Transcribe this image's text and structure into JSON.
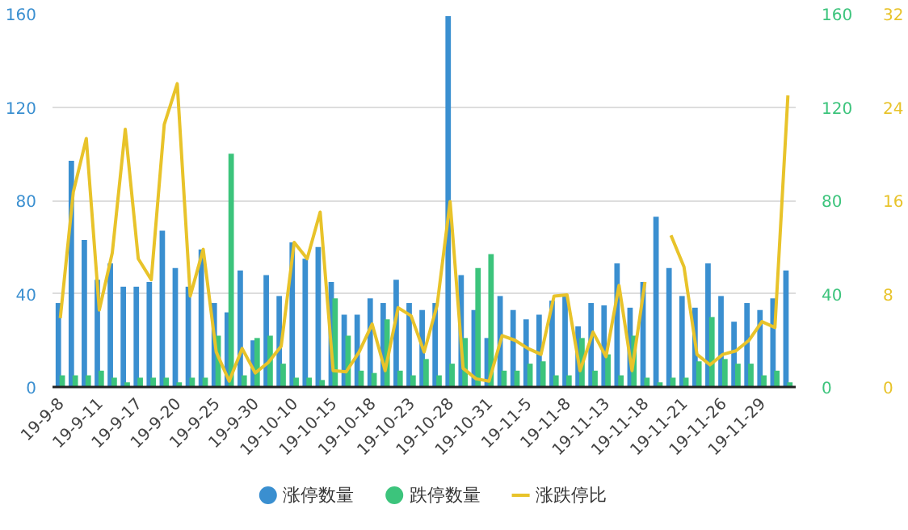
{
  "chart_data": {
    "type": "bar",
    "categories": [
      "19-9-8",
      null,
      null,
      "19-9-11",
      null,
      null,
      "19-9-17",
      null,
      null,
      "19-9-20",
      null,
      null,
      "19-9-25",
      null,
      null,
      "19-9-30",
      null,
      null,
      "19-10-10",
      null,
      null,
      "19-10-15",
      null,
      null,
      "19-10-18",
      null,
      null,
      "19-10-23",
      null,
      null,
      "19-10-28",
      null,
      null,
      "19-10-31",
      null,
      null,
      "19-11-5",
      null,
      null,
      "19-11-8",
      null,
      null,
      "19-11-13",
      null,
      null,
      "19-11-18",
      null,
      null,
      "19-11-21",
      null,
      null,
      "19-11-26",
      null,
      null,
      "19-11-29",
      null,
      null
    ],
    "series": [
      {
        "name": "涨停数量",
        "color": "#3a8fd0",
        "values": [
          36,
          97,
          63,
          46,
          53,
          43,
          43,
          45,
          67,
          51,
          43,
          59,
          36,
          32,
          50,
          20,
          48,
          39,
          62,
          55,
          60,
          45,
          31,
          31,
          38,
          36,
          46,
          36,
          33,
          36,
          159,
          48,
          33,
          21,
          39,
          33,
          29,
          31,
          37,
          39,
          26,
          36,
          35,
          53,
          34,
          45,
          73,
          51,
          39,
          34,
          53,
          39,
          28,
          36,
          33,
          38,
          50
        ]
      },
      {
        "name": "跌停数量",
        "axis": "y2",
        "color": "#3cc47c",
        "values": [
          5,
          5,
          5,
          7,
          4,
          2,
          4,
          4,
          4,
          2,
          4,
          4,
          22,
          100,
          5,
          21,
          22,
          10,
          4,
          4,
          3,
          38,
          22,
          7,
          6,
          29,
          7,
          5,
          12,
          5,
          10,
          21,
          51,
          57,
          7,
          7,
          10,
          11,
          5,
          5,
          21,
          7,
          14,
          5,
          22,
          4,
          2,
          4,
          4,
          11,
          30,
          12,
          10,
          10,
          5,
          7,
          2
        ]
      },
      {
        "name": "涨跌停比",
        "type": "line",
        "axis": "y3",
        "color": "#e8c32a",
        "values": [
          5.9,
          16.7,
          21.3,
          6.6,
          11.5,
          22.1,
          11,
          9.2,
          22.5,
          26,
          7.8,
          11.8,
          3,
          0.5,
          3.3,
          1.2,
          2.1,
          3.5,
          12.4,
          11,
          15,
          1.4,
          1.3,
          3,
          5.4,
          1.4,
          6.8,
          6.1,
          3,
          7,
          15.9,
          1.6,
          0.7,
          0.5,
          4.4,
          4,
          3.3,
          2.8,
          7.8,
          7.9,
          1.4,
          4.7,
          2.6,
          8.7,
          1.4,
          9,
          null,
          13,
          10.3,
          2.8,
          1.9,
          2.8,
          3.1,
          4,
          5.6,
          5.1,
          25
        ]
      }
    ],
    "ylim": [
      0,
      160
    ],
    "yticks": [
      0,
      40,
      80,
      120,
      160
    ],
    "y2lim": [
      0,
      160
    ],
    "y2ticks": [
      0,
      40,
      80,
      120,
      160
    ],
    "y3lim": [
      0,
      32
    ],
    "y3ticks": [
      0,
      8,
      16,
      24,
      32
    ],
    "grid": "y",
    "legend": "bottom",
    "marker": "none",
    "line_style": "solid"
  }
}
